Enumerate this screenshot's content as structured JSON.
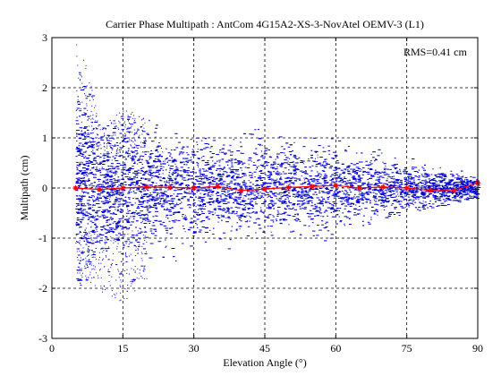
{
  "chart_data": {
    "type": "scatter",
    "title": "Carrier Phase Multipath : AntCom 4G15A2-XS-3-NovAtel OEMV-3 (L1)",
    "xlabel": "Elevation Angle (°)",
    "ylabel": "Multipath (cm)",
    "xlim": [
      0,
      90
    ],
    "ylim": [
      -3,
      3
    ],
    "xticks": [
      0,
      15,
      30,
      45,
      60,
      75,
      90
    ],
    "yticks": [
      -3,
      -2,
      -1,
      0,
      1,
      2,
      3
    ],
    "grid": true,
    "annotation": "RMS=0.41 cm",
    "rms_cm": 0.41,
    "series": [
      {
        "color": "#0000cc",
        "style": "dense dots",
        "x_range": [
          5,
          90
        ],
        "envelope": {
          "x": [
            5,
            8,
            10,
            15,
            20,
            25,
            30,
            35,
            40,
            45,
            50,
            55,
            60,
            65,
            70,
            75,
            80,
            85,
            90
          ],
          "upper": [
            2.9,
            2.3,
            1.2,
            1.6,
            1.4,
            1.1,
            1.1,
            1.0,
            1.2,
            1.3,
            1.0,
            1.1,
            1.1,
            0.9,
            0.9,
            0.7,
            0.6,
            0.5,
            0.4
          ],
          "lower": [
            -2.0,
            -1.9,
            -2.1,
            -2.3,
            -1.8,
            -1.5,
            -1.4,
            -1.3,
            -1.3,
            -1.0,
            -1.0,
            -1.1,
            -1.0,
            -0.8,
            -0.7,
            -0.5,
            -0.4,
            -0.3,
            -0.2
          ]
        }
      },
      {
        "color": "#ff0000",
        "style": "line with star markers",
        "x": [
          5,
          10,
          15,
          20,
          25,
          30,
          35,
          40,
          45,
          50,
          55,
          60,
          65,
          70,
          75,
          80,
          85,
          90
        ],
        "values": [
          0.0,
          -0.03,
          0.0,
          0.02,
          0.01,
          0.0,
          0.03,
          -0.05,
          -0.02,
          0.01,
          0.03,
          0.05,
          0.0,
          0.02,
          0.0,
          -0.05,
          -0.05,
          0.1
        ]
      }
    ]
  }
}
